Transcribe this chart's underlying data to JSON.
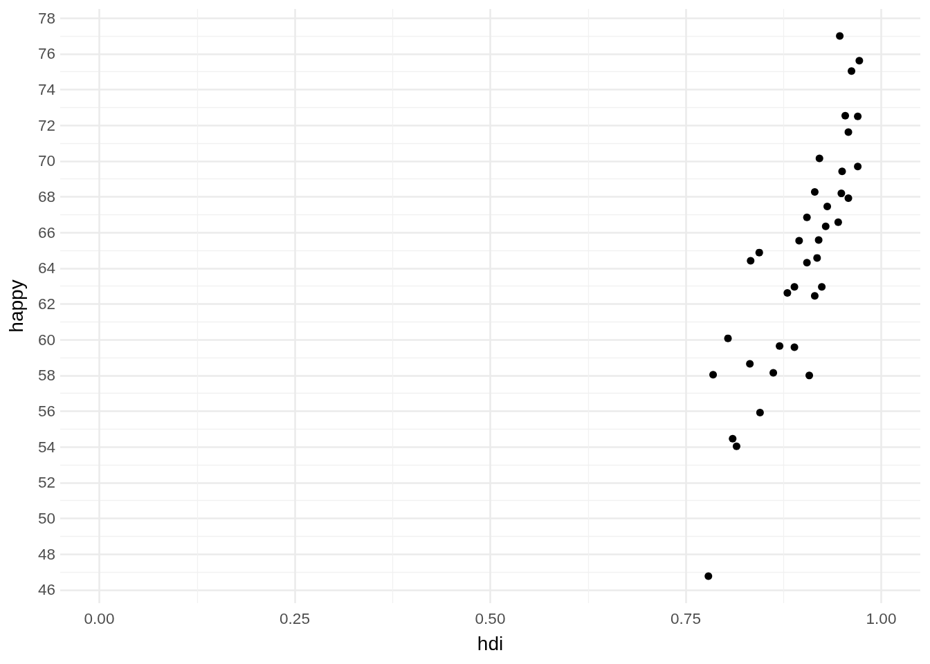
{
  "chart_data": {
    "type": "scatter",
    "xlabel": "hdi",
    "ylabel": "happy",
    "x": [
      0.947,
      0.972,
      0.962,
      0.954,
      0.97,
      0.958,
      0.921,
      0.97,
      0.95,
      0.915,
      0.949,
      0.958,
      0.931,
      0.905,
      0.945,
      0.929,
      0.895,
      0.92,
      0.844,
      0.833,
      0.918,
      0.905,
      0.889,
      0.924,
      0.88,
      0.915,
      0.804,
      0.87,
      0.889,
      0.832,
      0.785,
      0.862,
      0.908,
      0.845,
      0.81,
      0.815,
      0.779
    ],
    "values": [
      77.0,
      75.62,
      75.04,
      72.54,
      72.5,
      71.62,
      70.15,
      69.69,
      69.42,
      68.27,
      68.19,
      67.92,
      67.46,
      66.85,
      66.58,
      66.35,
      65.54,
      65.58,
      64.88,
      64.42,
      64.58,
      64.31,
      62.96,
      62.96,
      62.62,
      62.46,
      60.08,
      59.65,
      59.58,
      58.65,
      58.04,
      58.15,
      58.0,
      55.92,
      54.46,
      54.04,
      46.77
    ],
    "color": "#000000",
    "marker": "circle",
    "xlim": [
      -0.05,
      1.05
    ],
    "ylim": [
      45.26,
      78.51
    ],
    "xticks": [
      {
        "value": 0,
        "label": "0.00"
      },
      {
        "value": 0.125,
        "label": null
      },
      {
        "value": 0.25,
        "label": "0.25"
      },
      {
        "value": 0.375,
        "label": null
      },
      {
        "value": 0.5,
        "label": "0.50"
      },
      {
        "value": 0.625,
        "label": null
      },
      {
        "value": 0.75,
        "label": "0.75"
      },
      {
        "value": 0.875,
        "label": null
      },
      {
        "value": 1,
        "label": "1.00"
      }
    ],
    "yticks": [
      46,
      {
        "value": 47,
        "label": null
      },
      48,
      {
        "value": 49,
        "label": null
      },
      50,
      {
        "value": 51,
        "label": null
      },
      52,
      {
        "value": 53,
        "label": null
      },
      54,
      {
        "value": 55,
        "label": null
      },
      56,
      {
        "value": 57,
        "label": null
      },
      58,
      {
        "value": 59,
        "label": null
      },
      60,
      {
        "value": 61,
        "label": null
      },
      62,
      {
        "value": 63,
        "label": null
      },
      64,
      {
        "value": 65,
        "label": null
      },
      66,
      {
        "value": 67,
        "label": null
      },
      68,
      {
        "value": 69,
        "label": null
      },
      70,
      {
        "value": 71,
        "label": null
      },
      72,
      {
        "value": 73,
        "label": null
      },
      74,
      {
        "value": 75,
        "label": null
      },
      76,
      {
        "value": 77,
        "label": null
      },
      78
    ],
    "grid": true
  }
}
